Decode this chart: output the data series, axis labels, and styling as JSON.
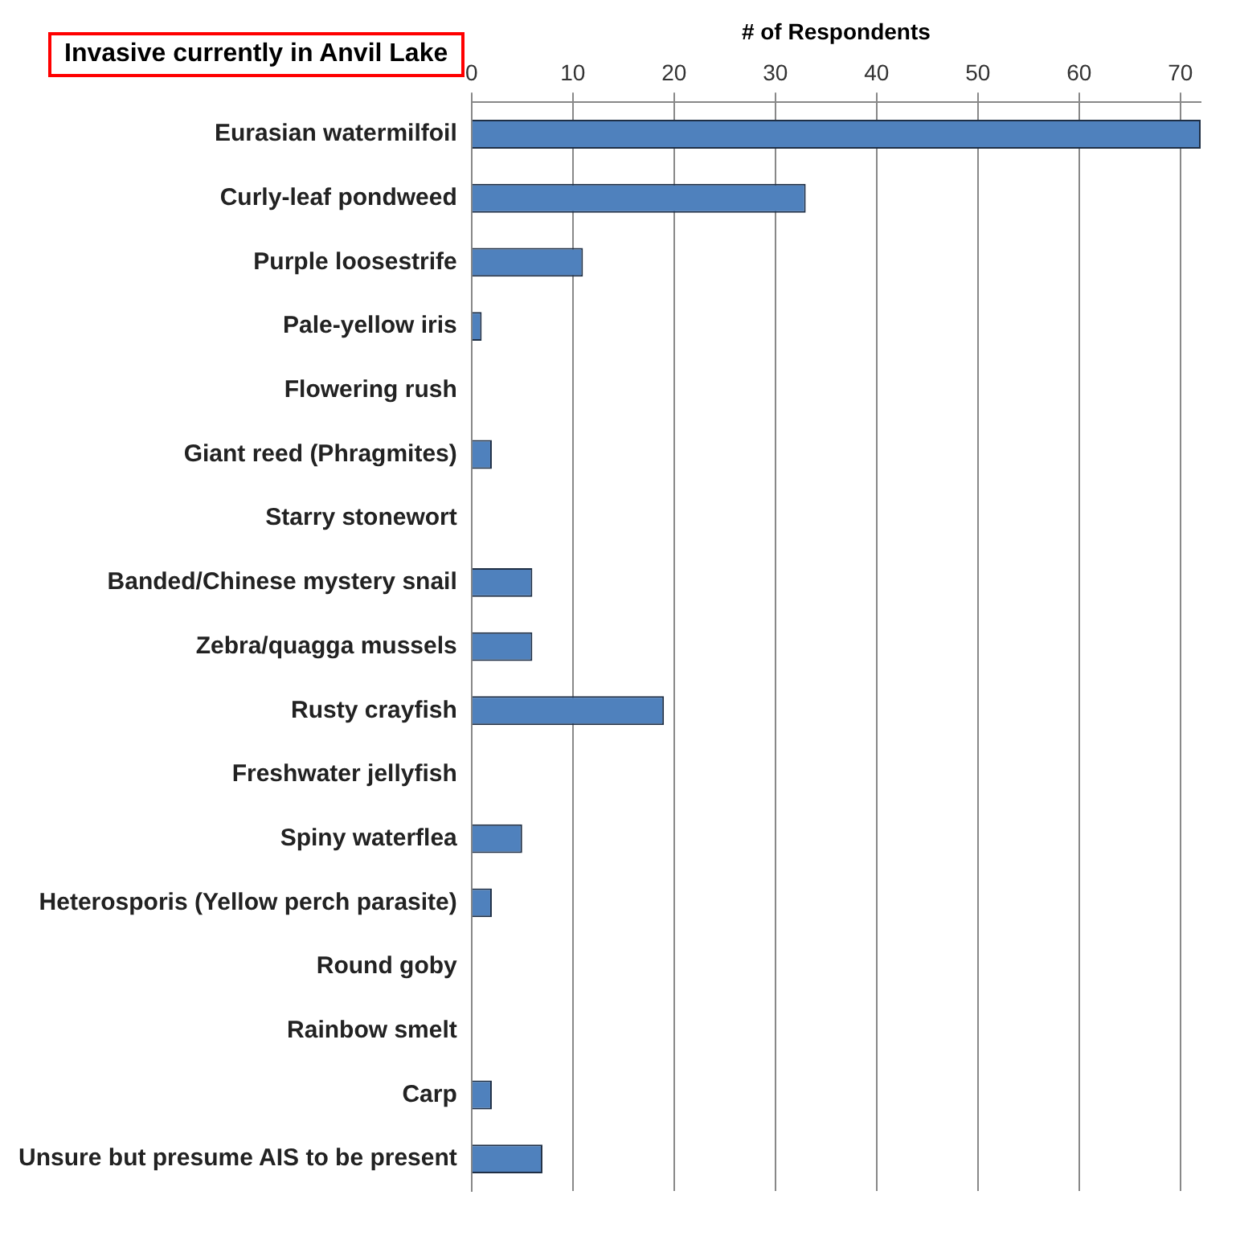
{
  "chart_data": {
    "type": "bar",
    "orientation": "horizontal",
    "title": "Invasive currently in Anvil Lake",
    "xlabel": "# of Respondents",
    "categories": [
      "Eurasian watermilfoil",
      "Curly-leaf pondweed",
      "Purple loosestrife",
      "Pale-yellow iris",
      "Flowering rush",
      "Giant reed (Phragmites)",
      "Starry stonewort",
      "Banded/Chinese mystery snail",
      "Zebra/quagga mussels",
      "Rusty crayfish",
      "Freshwater jellyfish",
      "Spiny waterflea",
      "Heterosporis (Yellow perch parasite)",
      "Round goby",
      "Rainbow smelt",
      "Carp",
      "Unsure but presume AIS to be present"
    ],
    "values": [
      72,
      33,
      11,
      1,
      0,
      2,
      0,
      6,
      6,
      19,
      0,
      5,
      2,
      0,
      0,
      2,
      7
    ],
    "color": "#4f81bd",
    "xlim": [
      0,
      72
    ],
    "xticks": [
      0,
      10,
      20,
      30,
      40,
      50,
      60,
      70
    ],
    "grid": "x",
    "legend": false
  }
}
